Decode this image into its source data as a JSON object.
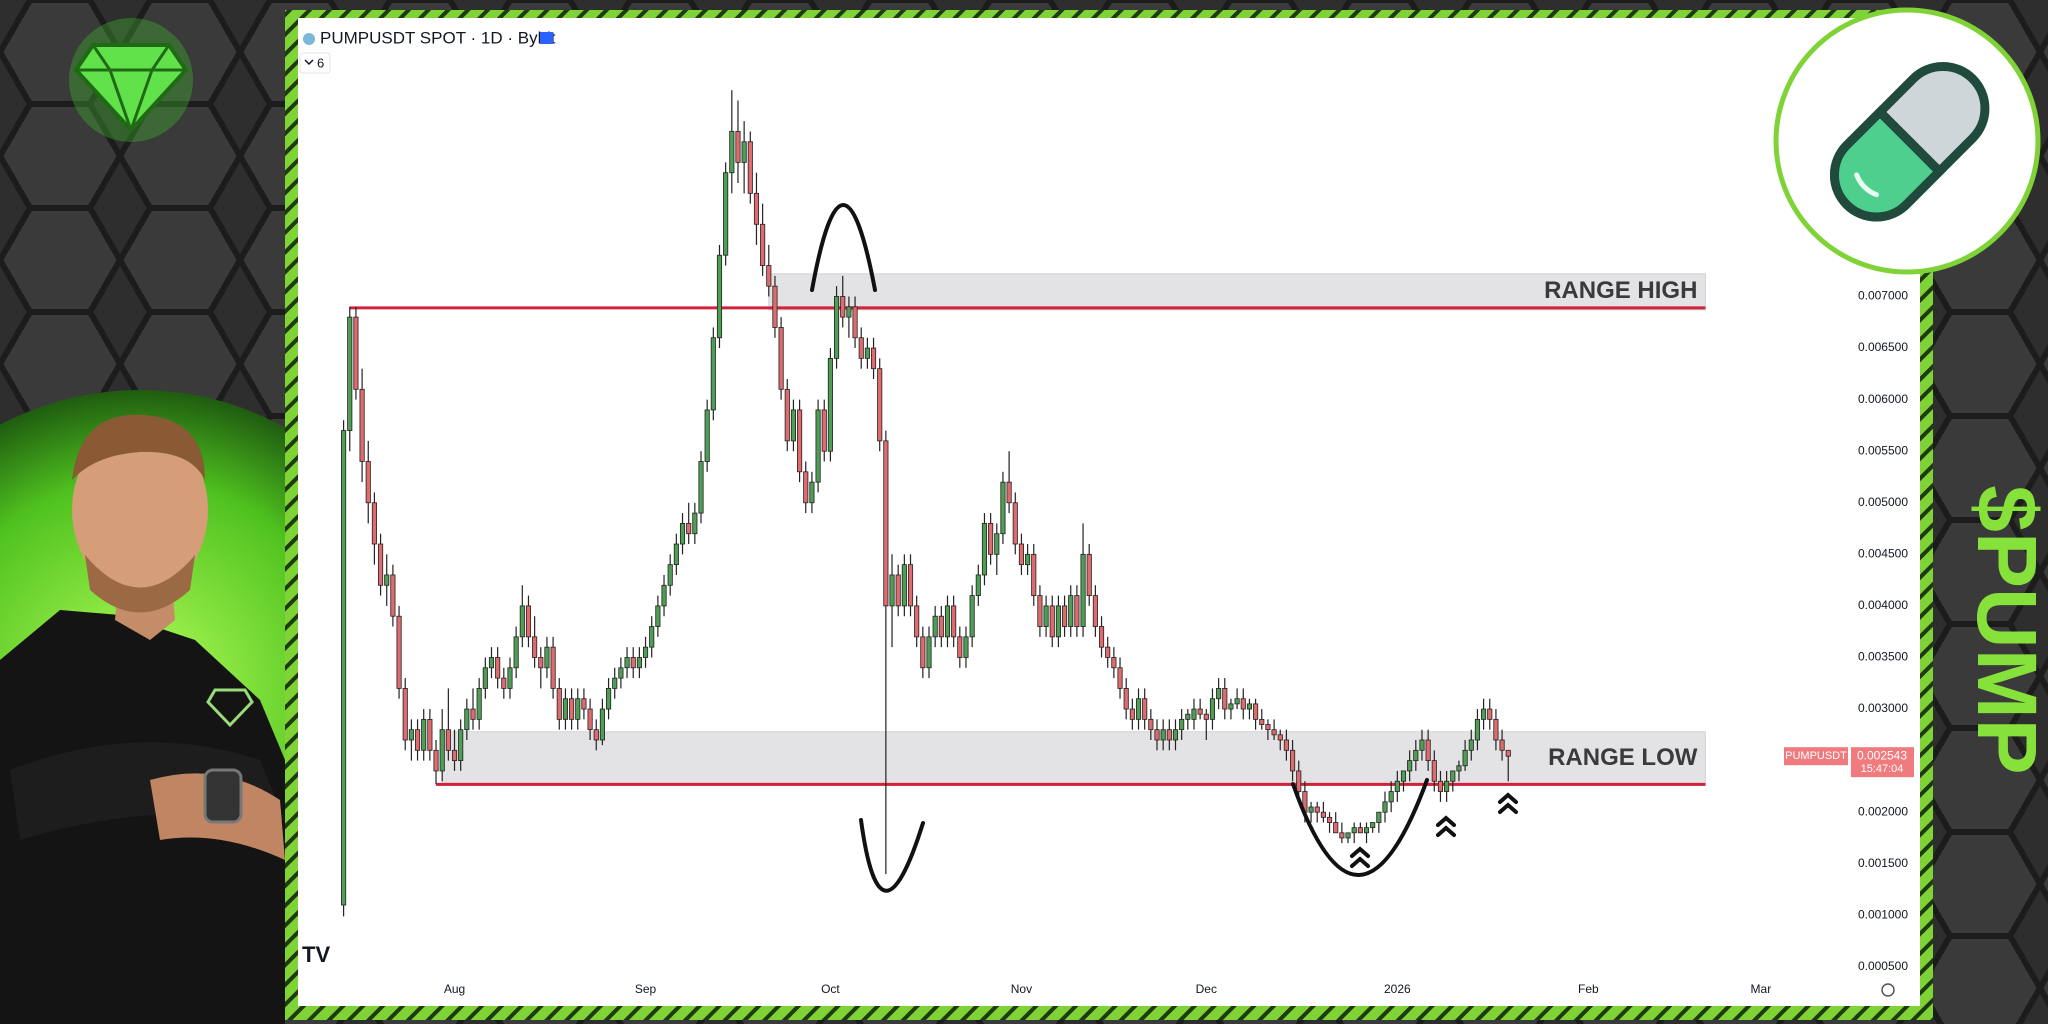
{
  "chart_data": {
    "type": "candlestick",
    "title": "PUMPUSDT SPOT · 1D · Bybit",
    "indicator_count": 6,
    "up_color": "#4f9e55",
    "down_color": "#df6b6f",
    "x": [
      0,
      1,
      2,
      3,
      4,
      5,
      6,
      7,
      8,
      9,
      10,
      11,
      12,
      13,
      14,
      15,
      16,
      17,
      18,
      19,
      20,
      21,
      22,
      23,
      24,
      25,
      26,
      27,
      28,
      29,
      30,
      31,
      32,
      33,
      34,
      35,
      36,
      37,
      38,
      39,
      40,
      41,
      42,
      43,
      44,
      45,
      46,
      47,
      48,
      49,
      50,
      51,
      52,
      53,
      54,
      55,
      56,
      57,
      58,
      59,
      60,
      61,
      62,
      63,
      64,
      65,
      66,
      67,
      68,
      69,
      70,
      71,
      72,
      73,
      74,
      75,
      76,
      77,
      78,
      79,
      80,
      81,
      82,
      83,
      84,
      85,
      86,
      87,
      88,
      89,
      90,
      91,
      92,
      93,
      94,
      95,
      96,
      97,
      98,
      99,
      100,
      101,
      102,
      103,
      104,
      105,
      106,
      107,
      108,
      109,
      110,
      111,
      112,
      113,
      114,
      115,
      116,
      117,
      118,
      119,
      120,
      121,
      122,
      123,
      124,
      125,
      126,
      127,
      128,
      129,
      130,
      131,
      132,
      133,
      134,
      135,
      136,
      137,
      138,
      139,
      140,
      141,
      142,
      143,
      144,
      145,
      146,
      147,
      148,
      149,
      150,
      151,
      152,
      153,
      154,
      155,
      156,
      157,
      158,
      159,
      160,
      161,
      162,
      163,
      164,
      165,
      166,
      167,
      168,
      169,
      170,
      171,
      172,
      173,
      174,
      175,
      176,
      177,
      178,
      179,
      180,
      181,
      182,
      183,
      184,
      185,
      186,
      187,
      188,
      189
    ],
    "ohlc": [
      [
        0.0011,
        0.0058,
        0.00099,
        0.0057
      ],
      [
        0.0057,
        0.0069,
        0.0055,
        0.0068
      ],
      [
        0.0068,
        0.0069,
        0.006,
        0.0061
      ],
      [
        0.0061,
        0.0063,
        0.0052,
        0.0054
      ],
      [
        0.0054,
        0.0056,
        0.0048,
        0.005
      ],
      [
        0.005,
        0.0051,
        0.0044,
        0.0046
      ],
      [
        0.0046,
        0.0047,
        0.0041,
        0.0042
      ],
      [
        0.0042,
        0.0045,
        0.004,
        0.0043
      ],
      [
        0.0043,
        0.0044,
        0.0038,
        0.0039
      ],
      [
        0.0039,
        0.004,
        0.0031,
        0.0032
      ],
      [
        0.0032,
        0.0033,
        0.0026,
        0.0027
      ],
      [
        0.0027,
        0.0029,
        0.0025,
        0.0028
      ],
      [
        0.0028,
        0.0029,
        0.0025,
        0.0026
      ],
      [
        0.0026,
        0.003,
        0.0025,
        0.0029
      ],
      [
        0.0029,
        0.003,
        0.0025,
        0.0026
      ],
      [
        0.0026,
        0.0027,
        0.00227,
        0.0024
      ],
      [
        0.0024,
        0.003,
        0.0023,
        0.0028
      ],
      [
        0.0028,
        0.0032,
        0.0025,
        0.0026
      ],
      [
        0.0026,
        0.0028,
        0.0024,
        0.0025
      ],
      [
        0.0025,
        0.0029,
        0.0024,
        0.0028
      ],
      [
        0.0028,
        0.0031,
        0.0027,
        0.003
      ],
      [
        0.003,
        0.0032,
        0.0028,
        0.0029
      ],
      [
        0.0029,
        0.0033,
        0.0028,
        0.0032
      ],
      [
        0.0032,
        0.0035,
        0.0031,
        0.0034
      ],
      [
        0.0034,
        0.0036,
        0.0033,
        0.0035
      ],
      [
        0.0035,
        0.0036,
        0.0032,
        0.0033
      ],
      [
        0.0033,
        0.0034,
        0.0031,
        0.0032
      ],
      [
        0.0032,
        0.0035,
        0.0031,
        0.0034
      ],
      [
        0.0034,
        0.0038,
        0.0033,
        0.0037
      ],
      [
        0.0037,
        0.0042,
        0.0036,
        0.004
      ],
      [
        0.004,
        0.0041,
        0.0036,
        0.0037
      ],
      [
        0.0037,
        0.0039,
        0.0034,
        0.0035
      ],
      [
        0.0035,
        0.0036,
        0.0032,
        0.0034
      ],
      [
        0.0034,
        0.0037,
        0.0033,
        0.0036
      ],
      [
        0.0036,
        0.0037,
        0.0031,
        0.0032
      ],
      [
        0.0032,
        0.0033,
        0.0028,
        0.0029
      ],
      [
        0.0029,
        0.0032,
        0.0028,
        0.0031
      ],
      [
        0.0031,
        0.0032,
        0.0028,
        0.0029
      ],
      [
        0.0029,
        0.0032,
        0.0028,
        0.0031
      ],
      [
        0.0031,
        0.0032,
        0.0029,
        0.003
      ],
      [
        0.003,
        0.0031,
        0.0027,
        0.0028
      ],
      [
        0.0028,
        0.0029,
        0.0026,
        0.0027
      ],
      [
        0.0027,
        0.0031,
        0.00265,
        0.003
      ],
      [
        0.003,
        0.0033,
        0.0029,
        0.0032
      ],
      [
        0.0032,
        0.0034,
        0.0031,
        0.0033
      ],
      [
        0.0033,
        0.0035,
        0.0032,
        0.0034
      ],
      [
        0.0034,
        0.0036,
        0.0033,
        0.0035
      ],
      [
        0.0035,
        0.0036,
        0.0033,
        0.0034
      ],
      [
        0.0034,
        0.0036,
        0.0033,
        0.0035
      ],
      [
        0.0035,
        0.0037,
        0.0034,
        0.0036
      ],
      [
        0.0036,
        0.0039,
        0.0035,
        0.0038
      ],
      [
        0.0038,
        0.0041,
        0.0037,
        0.004
      ],
      [
        0.004,
        0.0043,
        0.0039,
        0.0042
      ],
      [
        0.0042,
        0.0045,
        0.0041,
        0.0044
      ],
      [
        0.0044,
        0.0047,
        0.0043,
        0.0046
      ],
      [
        0.0046,
        0.0049,
        0.0045,
        0.0048
      ],
      [
        0.0048,
        0.005,
        0.0046,
        0.0047
      ],
      [
        0.0047,
        0.005,
        0.0046,
        0.0049
      ],
      [
        0.0049,
        0.0055,
        0.0048,
        0.0054
      ],
      [
        0.0054,
        0.006,
        0.0053,
        0.0059
      ],
      [
        0.0059,
        0.0067,
        0.0058,
        0.0066
      ],
      [
        0.0066,
        0.0075,
        0.0065,
        0.0074
      ],
      [
        0.0074,
        0.0083,
        0.0073,
        0.0082
      ],
      [
        0.0082,
        0.009,
        0.008,
        0.0086
      ],
      [
        0.0086,
        0.0089,
        0.0081,
        0.0083
      ],
      [
        0.0083,
        0.0087,
        0.008,
        0.0085
      ],
      [
        0.0085,
        0.0086,
        0.0079,
        0.008
      ],
      [
        0.008,
        0.0082,
        0.0075,
        0.0077
      ],
      [
        0.0077,
        0.0079,
        0.0072,
        0.0073
      ],
      [
        0.0073,
        0.0075,
        0.007,
        0.0071
      ],
      [
        0.0071,
        0.0072,
        0.0066,
        0.0067
      ],
      [
        0.0067,
        0.0068,
        0.006,
        0.0061
      ],
      [
        0.0061,
        0.0062,
        0.0055,
        0.0056
      ],
      [
        0.0056,
        0.006,
        0.0055,
        0.0059
      ],
      [
        0.0059,
        0.006,
        0.0052,
        0.0053
      ],
      [
        0.0053,
        0.0054,
        0.0049,
        0.005
      ],
      [
        0.005,
        0.0053,
        0.0049,
        0.0052
      ],
      [
        0.0052,
        0.006,
        0.0051,
        0.0059
      ],
      [
        0.0059,
        0.006,
        0.0054,
        0.0055
      ],
      [
        0.0055,
        0.0065,
        0.0054,
        0.0064
      ],
      [
        0.0064,
        0.0071,
        0.0063,
        0.007
      ],
      [
        0.007,
        0.0072,
        0.0067,
        0.0068
      ],
      [
        0.0068,
        0.007,
        0.0066,
        0.0069
      ],
      [
        0.0069,
        0.007,
        0.0065,
        0.0066
      ],
      [
        0.0066,
        0.0067,
        0.0063,
        0.0064
      ],
      [
        0.0064,
        0.0066,
        0.0063,
        0.0065
      ],
      [
        0.0065,
        0.0066,
        0.0062,
        0.0063
      ],
      [
        0.0063,
        0.0064,
        0.0055,
        0.0056
      ],
      [
        0.0056,
        0.0057,
        0.0014,
        0.004
      ],
      [
        0.004,
        0.0045,
        0.0036,
        0.0043
      ],
      [
        0.0043,
        0.0044,
        0.0039,
        0.004
      ],
      [
        0.004,
        0.0045,
        0.0039,
        0.0044
      ],
      [
        0.0044,
        0.0045,
        0.0039,
        0.004
      ],
      [
        0.004,
        0.0041,
        0.0036,
        0.0037
      ],
      [
        0.0037,
        0.0038,
        0.0033,
        0.0034
      ],
      [
        0.0034,
        0.0038,
        0.0033,
        0.0037
      ],
      [
        0.0037,
        0.004,
        0.0036,
        0.0039
      ],
      [
        0.0039,
        0.004,
        0.0036,
        0.0037
      ],
      [
        0.0037,
        0.0041,
        0.0036,
        0.004
      ],
      [
        0.004,
        0.0041,
        0.0036,
        0.0037
      ],
      [
        0.0037,
        0.0038,
        0.0034,
        0.0035
      ],
      [
        0.0035,
        0.0038,
        0.0034,
        0.0037
      ],
      [
        0.0037,
        0.0042,
        0.0036,
        0.0041
      ],
      [
        0.0041,
        0.0044,
        0.004,
        0.0043
      ],
      [
        0.0043,
        0.0049,
        0.0042,
        0.0048
      ],
      [
        0.0048,
        0.0049,
        0.0044,
        0.0045
      ],
      [
        0.0045,
        0.0048,
        0.0043,
        0.0047
      ],
      [
        0.0047,
        0.0053,
        0.0046,
        0.0052
      ],
      [
        0.0052,
        0.0055,
        0.0049,
        0.005
      ],
      [
        0.005,
        0.0051,
        0.0045,
        0.0046
      ],
      [
        0.0046,
        0.0047,
        0.0043,
        0.0044
      ],
      [
        0.0044,
        0.0046,
        0.0043,
        0.0045
      ],
      [
        0.0045,
        0.0046,
        0.004,
        0.0041
      ],
      [
        0.0041,
        0.0042,
        0.0037,
        0.0038
      ],
      [
        0.0038,
        0.0041,
        0.0037,
        0.004
      ],
      [
        0.004,
        0.0041,
        0.0036,
        0.0037
      ],
      [
        0.0037,
        0.0041,
        0.0036,
        0.004
      ],
      [
        0.004,
        0.0041,
        0.0037,
        0.0038
      ],
      [
        0.0038,
        0.0042,
        0.0037,
        0.0041
      ],
      [
        0.0041,
        0.0042,
        0.0037,
        0.0038
      ],
      [
        0.0038,
        0.0048,
        0.0037,
        0.0045
      ],
      [
        0.0045,
        0.0046,
        0.004,
        0.0041
      ],
      [
        0.0041,
        0.0042,
        0.0037,
        0.0038
      ],
      [
        0.0038,
        0.0039,
        0.0035,
        0.0036
      ],
      [
        0.0036,
        0.0037,
        0.0034,
        0.0035
      ],
      [
        0.0035,
        0.0036,
        0.0033,
        0.0034
      ],
      [
        0.0034,
        0.0035,
        0.0031,
        0.0032
      ],
      [
        0.0032,
        0.0033,
        0.0029,
        0.003
      ],
      [
        0.003,
        0.0031,
        0.0028,
        0.0029
      ],
      [
        0.0029,
        0.0032,
        0.0028,
        0.0031
      ],
      [
        0.0031,
        0.0032,
        0.0028,
        0.0029
      ],
      [
        0.0029,
        0.003,
        0.0027,
        0.0028
      ],
      [
        0.0028,
        0.0029,
        0.0026,
        0.0027
      ],
      [
        0.0027,
        0.0029,
        0.0026,
        0.0028
      ],
      [
        0.0028,
        0.0029,
        0.0026,
        0.0027
      ],
      [
        0.0027,
        0.0029,
        0.0026,
        0.0028
      ],
      [
        0.0028,
        0.003,
        0.0027,
        0.0029
      ],
      [
        0.0029,
        0.003,
        0.0028,
        0.00295
      ],
      [
        0.0029,
        0.0031,
        0.0028,
        0.003
      ],
      [
        0.003,
        0.0031,
        0.0029,
        0.00295
      ],
      [
        0.00295,
        0.003,
        0.0027,
        0.0029
      ],
      [
        0.0029,
        0.0032,
        0.0028,
        0.0031
      ],
      [
        0.0031,
        0.0033,
        0.003,
        0.0032
      ],
      [
        0.0032,
        0.0033,
        0.0029,
        0.003
      ],
      [
        0.003,
        0.0031,
        0.0029,
        0.00305
      ],
      [
        0.00305,
        0.0032,
        0.003,
        0.0031
      ],
      [
        0.0031,
        0.0032,
        0.0029,
        0.003
      ],
      [
        0.003,
        0.0031,
        0.0029,
        0.00305
      ],
      [
        0.00305,
        0.0031,
        0.0028,
        0.0029
      ],
      [
        0.0029,
        0.003,
        0.0028,
        0.00285
      ],
      [
        0.00285,
        0.0029,
        0.0027,
        0.0028
      ],
      [
        0.0028,
        0.0029,
        0.0027,
        0.00275
      ],
      [
        0.00275,
        0.0028,
        0.0026,
        0.0027
      ],
      [
        0.0027,
        0.0028,
        0.0025,
        0.0026
      ],
      [
        0.0026,
        0.0027,
        0.0023,
        0.0024
      ],
      [
        0.0024,
        0.0025,
        0.0021,
        0.0022
      ],
      [
        0.0022,
        0.0023,
        0.0019,
        0.002
      ],
      [
        0.002,
        0.0021,
        0.0019,
        0.00205
      ],
      [
        0.00205,
        0.0021,
        0.0019,
        0.002
      ],
      [
        0.002,
        0.0021,
        0.0019,
        0.00195
      ],
      [
        0.00195,
        0.002,
        0.0018,
        0.0019
      ],
      [
        0.0019,
        0.002,
        0.0018,
        0.0018
      ],
      [
        0.0018,
        0.0019,
        0.0017,
        0.00175
      ],
      [
        0.00175,
        0.0018,
        0.0017,
        0.0018
      ],
      [
        0.0018,
        0.0019,
        0.0017,
        0.00185
      ],
      [
        0.00185,
        0.0019,
        0.0018,
        0.0018
      ],
      [
        0.0018,
        0.0019,
        0.0017,
        0.00185
      ],
      [
        0.00185,
        0.0019,
        0.0018,
        0.0019
      ],
      [
        0.0019,
        0.002,
        0.0018,
        0.002
      ],
      [
        0.002,
        0.0022,
        0.0019,
        0.0021
      ],
      [
        0.0021,
        0.0023,
        0.002,
        0.0022
      ],
      [
        0.0022,
        0.0024,
        0.0021,
        0.0023
      ],
      [
        0.0023,
        0.0024,
        0.0022,
        0.0024
      ],
      [
        0.0024,
        0.0026,
        0.0023,
        0.0025
      ],
      [
        0.0025,
        0.0027,
        0.0024,
        0.0026
      ],
      [
        0.0026,
        0.0028,
        0.0025,
        0.0027
      ],
      [
        0.0027,
        0.0028,
        0.0024,
        0.0025
      ],
      [
        0.0025,
        0.0026,
        0.0022,
        0.0023
      ],
      [
        0.0023,
        0.0024,
        0.0021,
        0.0022
      ],
      [
        0.0022,
        0.0024,
        0.0021,
        0.0023
      ],
      [
        0.0023,
        0.0024,
        0.0022,
        0.0024
      ],
      [
        0.0024,
        0.0025,
        0.0023,
        0.00245
      ],
      [
        0.00245,
        0.0027,
        0.0024,
        0.0026
      ],
      [
        0.0026,
        0.0028,
        0.0025,
        0.0027
      ],
      [
        0.0027,
        0.003,
        0.0026,
        0.0029
      ],
      [
        0.0029,
        0.0031,
        0.0028,
        0.003
      ],
      [
        0.003,
        0.0031,
        0.0028,
        0.0029
      ],
      [
        0.0029,
        0.003,
        0.0026,
        0.0027
      ],
      [
        0.0027,
        0.0028,
        0.0025,
        0.0026
      ],
      [
        0.0026,
        0.0026,
        0.0023,
        0.002543
      ]
    ],
    "xlim": [
      -7.4,
      243
    ],
    "xticks": [
      {
        "value": 18,
        "label": "Aug"
      },
      {
        "value": 49,
        "label": "Sep"
      },
      {
        "value": 79,
        "label": "Oct"
      },
      {
        "value": 110,
        "label": "Nov"
      },
      {
        "value": 140,
        "label": "Dec"
      },
      {
        "value": 171,
        "label": "2026"
      },
      {
        "value": 202,
        "label": "Feb"
      },
      {
        "value": 230,
        "label": "Mar"
      }
    ],
    "ylim": [
      0.00015,
      0.0097
    ],
    "yticks": [
      {
        "value": 0.0005,
        "label": "0.000500"
      },
      {
        "value": 0.001,
        "label": "0.001000"
      },
      {
        "value": 0.0015,
        "label": "0.001500"
      },
      {
        "value": 0.002,
        "label": "0.002000"
      },
      {
        "value": 0.0025,
        "label": "0.002500"
      },
      {
        "value": 0.003,
        "label": "0.003000"
      },
      {
        "value": 0.0035,
        "label": "0.003500"
      },
      {
        "value": 0.004,
        "label": "0.004000"
      },
      {
        "value": 0.0045,
        "label": "0.004500"
      },
      {
        "value": 0.005,
        "label": "0.005000"
      },
      {
        "value": 0.0055,
        "label": "0.005500"
      },
      {
        "value": 0.006,
        "label": "0.006000"
      },
      {
        "value": 0.0065,
        "label": "0.006500"
      },
      {
        "value": 0.007,
        "label": "0.007000"
      }
    ],
    "grid": false,
    "annotations": [
      {
        "text": "RANGE HIGH",
        "level": 0.00689,
        "zone": [
          0.00687,
          0.00722
        ],
        "line_x": [
          1,
          221
        ],
        "zone_x": [
          69,
          221
        ]
      },
      {
        "text": "RANGE LOW",
        "level": 0.00227,
        "zone": [
          0.00226,
          0.00278
        ],
        "line_x": [
          15,
          221
        ],
        "zone_x": [
          16,
          221
        ]
      }
    ],
    "price_tag": {
      "symbol": "PUMPUSDT",
      "price": {
        "value": 0.002543,
        "label": "0.002543"
      },
      "countdown": "15:47:04",
      "color": "#f07b7f"
    }
  },
  "overlay_text": "$PUMP"
}
